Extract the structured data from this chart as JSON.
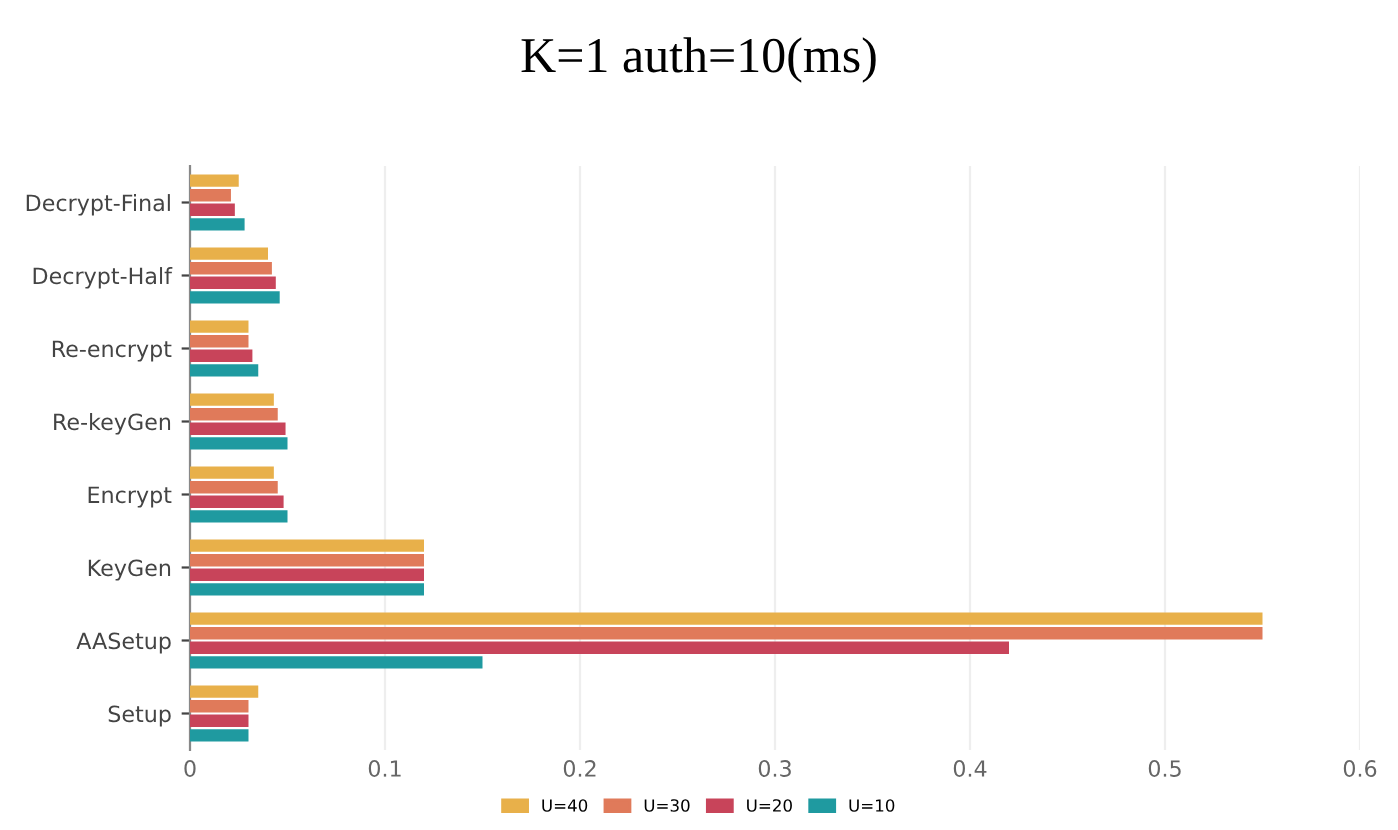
{
  "chart_data": {
    "type": "bar",
    "orientation": "horizontal",
    "title": "K=1 auth=10(ms)",
    "categories": [
      "Decrypt-Final",
      "Decrypt-Half",
      "Re-encrypt",
      "Re-keyGen",
      "Encrypt",
      "KeyGen",
      "AASetup",
      "Setup"
    ],
    "series": [
      {
        "name": "U=40",
        "color": "#e8b04a",
        "values": [
          0.025,
          0.04,
          0.03,
          0.043,
          0.043,
          0.12,
          0.55,
          0.035
        ]
      },
      {
        "name": "U=30",
        "color": "#e07a5a",
        "values": [
          0.021,
          0.042,
          0.03,
          0.045,
          0.045,
          0.12,
          0.55,
          0.03
        ]
      },
      {
        "name": "U=20",
        "color": "#c8445a",
        "values": [
          0.023,
          0.044,
          0.032,
          0.049,
          0.048,
          0.12,
          0.42,
          0.03
        ]
      },
      {
        "name": "U=10",
        "color": "#1f9aa0",
        "values": [
          0.028,
          0.046,
          0.035,
          0.05,
          0.05,
          0.12,
          0.15,
          0.03
        ]
      }
    ],
    "xlim": [
      0,
      0.6
    ],
    "xticks": [
      0,
      0.1,
      0.2,
      0.3,
      0.4,
      0.5,
      0.6
    ],
    "grid": "x",
    "legend": "bottom"
  }
}
